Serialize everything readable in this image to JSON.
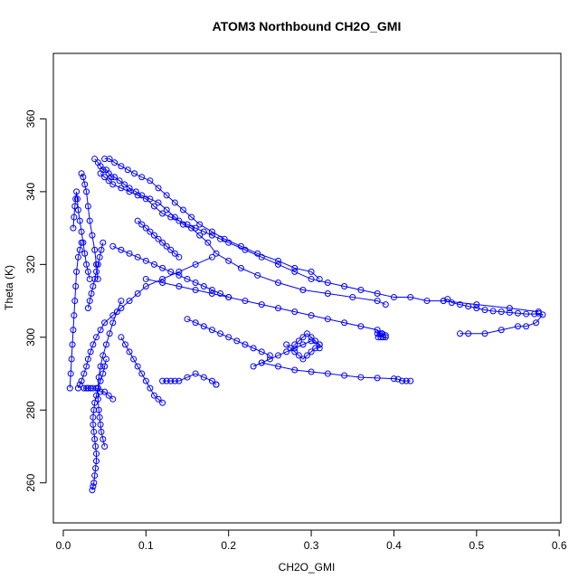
{
  "chart_data": {
    "type": "scatter",
    "title": "ATOM3 Northbound CH2O_GMI",
    "xlabel": "CH2O_GMI",
    "ylabel": "Theta (K)",
    "xlim": [
      -0.012,
      0.602
    ],
    "ylim": [
      249,
      378
    ],
    "xticks": [
      0.0,
      0.1,
      0.2,
      0.3,
      0.4,
      0.5,
      0.6
    ],
    "xtick_labels": [
      "0.0",
      "0.1",
      "0.2",
      "0.3",
      "0.4",
      "0.5",
      "0.6"
    ],
    "yticks": [
      260,
      280,
      300,
      320,
      340,
      360
    ],
    "ytick_labels": [
      "260",
      "280",
      "300",
      "320",
      "340",
      "360"
    ],
    "grid": false,
    "color": "#0000ff",
    "series": [
      {
        "x": [
          0.038,
          0.042,
          0.045,
          0.048,
          0.052,
          0.055,
          0.058,
          0.062,
          0.068,
          0.074,
          0.08,
          0.088,
          0.095,
          0.105,
          0.115,
          0.125,
          0.135,
          0.145,
          0.155,
          0.165,
          0.175,
          0.185,
          0.2,
          0.215,
          0.235,
          0.26,
          0.29,
          0.32,
          0.35,
          0.38,
          0.39
        ],
        "y": [
          349,
          348,
          347,
          346,
          346,
          345,
          344,
          344,
          343,
          342,
          341,
          340,
          339,
          338,
          337,
          335,
          333,
          331,
          330,
          328,
          326,
          323,
          321,
          319,
          317,
          315,
          313,
          312,
          311,
          310,
          309
        ]
      },
      {
        "x": [
          0.05,
          0.056,
          0.062,
          0.07,
          0.078,
          0.086,
          0.095,
          0.105,
          0.115,
          0.125,
          0.135,
          0.145,
          0.155,
          0.165,
          0.18,
          0.195,
          0.215,
          0.235,
          0.26,
          0.28,
          0.3,
          0.31
        ],
        "y": [
          349,
          349,
          348,
          347,
          346,
          345,
          344,
          343,
          341,
          339,
          337,
          335,
          333,
          331,
          329,
          327,
          325,
          323,
          321,
          319,
          318,
          316
        ]
      },
      {
        "x": [
          0.045,
          0.05,
          0.055,
          0.06,
          0.07,
          0.08,
          0.09,
          0.1,
          0.11,
          0.12,
          0.13,
          0.14,
          0.15,
          0.16,
          0.17,
          0.18,
          0.19,
          0.2,
          0.22,
          0.24,
          0.26,
          0.28,
          0.3,
          0.32,
          0.34,
          0.36,
          0.38,
          0.4,
          0.42,
          0.44,
          0.46,
          0.5,
          0.54,
          0.575
        ],
        "y": [
          345,
          344,
          343,
          342,
          341,
          340,
          339,
          338,
          336,
          334,
          333,
          332,
          331,
          330,
          329,
          328,
          327,
          326,
          324,
          322,
          320,
          318,
          316,
          315,
          314,
          313,
          312,
          311,
          311,
          310,
          310,
          309,
          308,
          307
        ]
      },
      {
        "x": [
          0.46,
          0.465,
          0.47,
          0.48,
          0.49,
          0.5,
          0.51,
          0.52,
          0.53,
          0.54,
          0.55,
          0.56,
          0.57,
          0.575,
          0.58,
          0.572,
          0.56,
          0.55,
          0.53,
          0.51,
          0.49,
          0.48
        ],
        "y": [
          310,
          310.5,
          309.5,
          309,
          308.5,
          308,
          307.5,
          307.2,
          307,
          306.8,
          306.6,
          306.4,
          306.4,
          306.6,
          306.2,
          304,
          303,
          303,
          302,
          301,
          301,
          301
        ]
      },
      {
        "x": [
          0.035,
          0.036,
          0.037,
          0.038,
          0.039,
          0.04,
          0.04,
          0.039,
          0.038,
          0.037,
          0.036,
          0.036,
          0.037,
          0.038,
          0.04,
          0.042,
          0.045,
          0.048,
          0.05,
          0.052
        ],
        "y": [
          258,
          259,
          260,
          262,
          264,
          266,
          268,
          270,
          272,
          274,
          276,
          278,
          280,
          282,
          284,
          286,
          288,
          290,
          292,
          294
        ]
      },
      {
        "x": [
          0.05,
          0.048,
          0.046,
          0.045,
          0.044,
          0.043,
          0.042,
          0.042,
          0.043,
          0.045,
          0.048,
          0.052,
          0.056,
          0.06,
          0.065,
          0.07
        ],
        "y": [
          270,
          272,
          274,
          276,
          278,
          280,
          283,
          286,
          289,
          292,
          295,
          298,
          301,
          304,
          307,
          310
        ]
      },
      {
        "x": [
          0.018,
          0.02,
          0.022,
          0.025,
          0.028,
          0.03,
          0.033,
          0.036,
          0.04,
          0.045,
          0.05,
          0.06,
          0.07,
          0.08,
          0.09,
          0.1,
          0.12,
          0.14,
          0.16,
          0.18
        ],
        "y": [
          286,
          287,
          288,
          290,
          292,
          294,
          296,
          298,
          300,
          302,
          304,
          306,
          308,
          310,
          312,
          314,
          316,
          318,
          320,
          322
        ]
      },
      {
        "x": [
          0.012,
          0.013,
          0.014,
          0.015,
          0.016,
          0.017,
          0.018,
          0.02,
          0.022,
          0.024,
          0.026,
          0.028,
          0.03,
          0.032
        ],
        "y": [
          330,
          333,
          336,
          338,
          340,
          338,
          335,
          332,
          329,
          326,
          323,
          320,
          318,
          316
        ]
      },
      {
        "x": [
          0.008,
          0.009,
          0.01,
          0.011,
          0.012,
          0.013,
          0.014,
          0.015,
          0.016,
          0.018,
          0.02,
          0.022
        ],
        "y": [
          286,
          290,
          294,
          298,
          302,
          306,
          310,
          314,
          318,
          322,
          324,
          326
        ]
      },
      {
        "x": [
          0.022,
          0.024,
          0.026,
          0.028,
          0.03,
          0.032,
          0.035,
          0.038,
          0.04,
          0.042
        ],
        "y": [
          345,
          344,
          342,
          340,
          336,
          332,
          328,
          324,
          320,
          316
        ]
      },
      {
        "x": [
          0.24,
          0.26,
          0.28,
          0.3,
          0.32,
          0.34,
          0.36,
          0.38,
          0.4,
          0.405,
          0.41,
          0.415,
          0.42
        ],
        "y": [
          293,
          292,
          291,
          290.5,
          290,
          289.5,
          289,
          288.8,
          288.6,
          288.5,
          288,
          288,
          288
        ]
      },
      {
        "x": [
          0.12,
          0.125,
          0.13,
          0.135,
          0.14,
          0.15,
          0.16,
          0.17,
          0.18,
          0.185,
          0.185
        ],
        "y": [
          288,
          288,
          288,
          288,
          288,
          289,
          290,
          289,
          288,
          287,
          287
        ]
      },
      {
        "x": [
          0.1,
          0.12,
          0.14,
          0.16,
          0.18,
          0.2,
          0.22,
          0.24,
          0.26,
          0.28,
          0.3,
          0.32,
          0.34,
          0.36,
          0.38,
          0.385
        ],
        "y": [
          316,
          315,
          314,
          313,
          312,
          311,
          310,
          309,
          308,
          307,
          306,
          305,
          304,
          303,
          302,
          301
        ]
      },
      {
        "x": [
          0.28,
          0.285,
          0.29,
          0.295,
          0.3,
          0.305,
          0.31,
          0.305,
          0.3,
          0.295,
          0.29,
          0.285,
          0.28,
          0.275,
          0.27
        ],
        "y": [
          298,
          299,
          300,
          301,
          300,
          299,
          298,
          297,
          296,
          295,
          294,
          295,
          296,
          297,
          298
        ]
      },
      {
        "x": [
          0.23,
          0.24,
          0.25,
          0.26,
          0.27,
          0.28,
          0.29,
          0.3,
          0.31,
          0.31
        ],
        "y": [
          292,
          293,
          294,
          295,
          296,
          297,
          298,
          299,
          298,
          297
        ]
      },
      {
        "x": [
          0.06,
          0.07,
          0.08,
          0.09,
          0.1,
          0.11,
          0.12,
          0.13,
          0.14,
          0.15,
          0.16,
          0.17,
          0.18,
          0.19,
          0.2
        ],
        "y": [
          325,
          324,
          323,
          322,
          321,
          320,
          319,
          318,
          317,
          316,
          315,
          314,
          313,
          312,
          311
        ]
      },
      {
        "x": [
          0.07,
          0.075,
          0.08,
          0.085,
          0.09,
          0.095,
          0.1,
          0.105,
          0.11,
          0.115,
          0.12
        ],
        "y": [
          300,
          298,
          296,
          294,
          292,
          290,
          288,
          286,
          284,
          283,
          282
        ]
      },
      {
        "x": [
          0.025,
          0.028,
          0.03,
          0.033,
          0.036,
          0.04,
          0.045,
          0.05,
          0.055,
          0.06
        ],
        "y": [
          286,
          286,
          286,
          286,
          286,
          286,
          285,
          285,
          284,
          283
        ]
      },
      {
        "x": [
          0.03,
          0.032,
          0.034,
          0.036,
          0.038,
          0.04,
          0.042,
          0.044,
          0.046,
          0.048
        ],
        "y": [
          308,
          310,
          312,
          314,
          316,
          318,
          320,
          322,
          324,
          326
        ]
      },
      {
        "x": [
          0.09,
          0.095,
          0.1,
          0.105,
          0.11,
          0.115,
          0.12,
          0.125,
          0.13,
          0.135,
          0.14
        ],
        "y": [
          332,
          331,
          330,
          329,
          328,
          327,
          326,
          325,
          324,
          323,
          322
        ]
      },
      {
        "x": [
          0.15,
          0.16,
          0.17,
          0.18,
          0.19,
          0.2,
          0.21,
          0.22,
          0.23,
          0.24,
          0.25
        ],
        "y": [
          305,
          304,
          303,
          302,
          301,
          300,
          299,
          298,
          297,
          296,
          295
        ]
      },
      {
        "x": [
          0.38,
          0.383,
          0.386,
          0.39,
          0.39,
          0.387,
          0.384,
          0.381
        ],
        "y": [
          301,
          301,
          301,
          300.5,
          300,
          300,
          300,
          300
        ]
      }
    ]
  }
}
